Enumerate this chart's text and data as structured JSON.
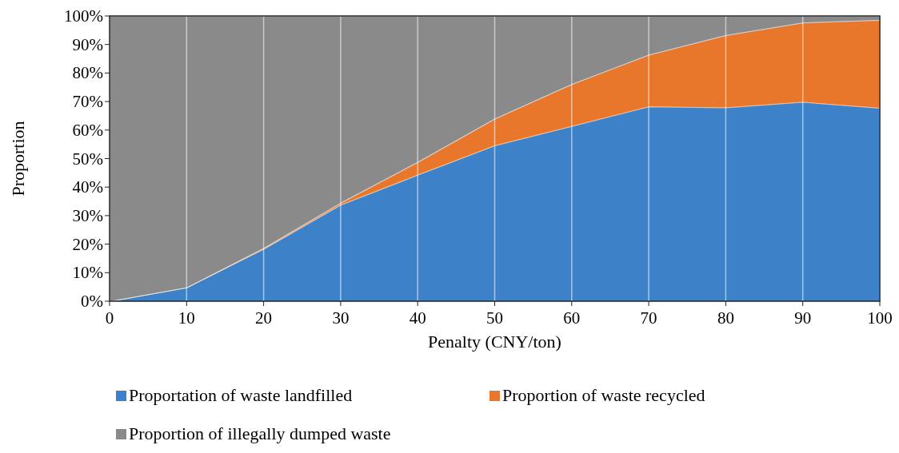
{
  "chart_data": {
    "type": "area",
    "stacked": true,
    "xlabel": "Penalty (CNY/ton)",
    "ylabel": "Proportion",
    "x": [
      0,
      10,
      20,
      30,
      40,
      50,
      60,
      70,
      80,
      90,
      100
    ],
    "xlim": [
      0,
      100
    ],
    "xticks": [
      0,
      10,
      20,
      30,
      40,
      50,
      60,
      70,
      80,
      90,
      100
    ],
    "ylim": [
      0,
      100
    ],
    "yticks": [
      {
        "value": 0,
        "label": "0%"
      },
      {
        "value": 10,
        "label": "10%"
      },
      {
        "value": 20,
        "label": "20%"
      },
      {
        "value": 30,
        "label": "30%"
      },
      {
        "value": 40,
        "label": "40%"
      },
      {
        "value": 50,
        "label": "50%"
      },
      {
        "value": 60,
        "label": "60%"
      },
      {
        "value": 70,
        "label": "70%"
      },
      {
        "value": 80,
        "label": "80%"
      },
      {
        "value": 90,
        "label": "90%"
      },
      {
        "value": 100,
        "label": "100%"
      }
    ],
    "grid": "x",
    "legend": "bottom",
    "series": [
      {
        "name": "Proportation of waste landfilled",
        "color": "#3d82c8",
        "values": [
          0,
          4.8,
          18.3,
          33.8,
          44.3,
          54.6,
          61.4,
          68.3,
          67.9,
          69.9,
          67.8
        ]
      },
      {
        "name": "Proportion of waste recycled",
        "color": "#e8772c",
        "values": [
          0,
          0,
          0.3,
          0.7,
          4.5,
          9.4,
          14.7,
          18.1,
          25.4,
          27.8,
          30.8
        ]
      },
      {
        "name": "Proportion of illegally dumped waste",
        "color": "#8a8a8a",
        "values": [
          100,
          95.2,
          81.4,
          65.5,
          51.2,
          36.0,
          23.9,
          13.6,
          6.7,
          2.3,
          1.4
        ]
      }
    ]
  }
}
